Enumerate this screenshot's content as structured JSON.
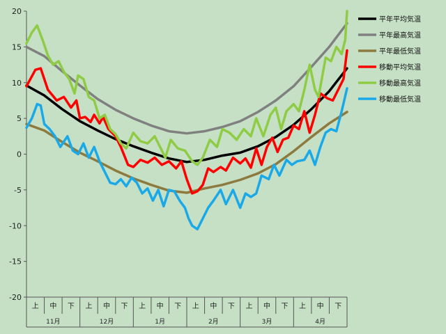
{
  "chart_data": {
    "type": "line",
    "ylim": [
      -20,
      20
    ],
    "yticks": [
      20,
      15,
      10,
      5,
      0,
      -5,
      -10,
      -15,
      -20
    ],
    "grid": false,
    "legend_position": "right",
    "background_color": "#c6e0c6",
    "x_sub_labels": [
      "上",
      "中",
      "下",
      "上",
      "中",
      "下",
      "上",
      "中",
      "下",
      "上",
      "中",
      "下",
      "上",
      "中",
      "下",
      "上",
      "中",
      "下"
    ],
    "months": [
      "11月",
      "12月",
      "1月",
      "2月",
      "3月",
      "4月"
    ],
    "x_range": [
      0,
      18
    ],
    "series": [
      {
        "name": "平年平均気温",
        "color": "#000000",
        "points": [
          [
            0,
            9.6
          ],
          [
            1,
            8.2
          ],
          [
            2,
            6.3
          ],
          [
            3,
            4.6
          ],
          [
            4,
            3.3
          ],
          [
            5,
            2.1
          ],
          [
            6,
            1.1
          ],
          [
            7,
            0.2
          ],
          [
            8,
            -0.6
          ],
          [
            9,
            -1.1
          ],
          [
            10,
            -0.8
          ],
          [
            11,
            -0.2
          ],
          [
            12,
            0.2
          ],
          [
            13,
            1.1
          ],
          [
            14,
            2.4
          ],
          [
            15,
            4.1
          ],
          [
            16,
            6.3
          ],
          [
            17,
            8.8
          ],
          [
            18,
            12.0
          ]
        ]
      },
      {
        "name": "平年最高気温",
        "color": "#808080",
        "points": [
          [
            0,
            15.0
          ],
          [
            1,
            13.7
          ],
          [
            2,
            11.6
          ],
          [
            3,
            9.6
          ],
          [
            4,
            7.7
          ],
          [
            5,
            6.2
          ],
          [
            6,
            5.0
          ],
          [
            7,
            4.0
          ],
          [
            8,
            3.2
          ],
          [
            9,
            2.9
          ],
          [
            10,
            3.2
          ],
          [
            11,
            3.8
          ],
          [
            12,
            4.6
          ],
          [
            13,
            5.9
          ],
          [
            14,
            7.5
          ],
          [
            15,
            9.5
          ],
          [
            16,
            12.2
          ],
          [
            17,
            15.0
          ],
          [
            18,
            18.3
          ]
        ]
      },
      {
        "name": "平年最低気温",
        "color": "#8c7a3e",
        "points": [
          [
            0,
            4.2
          ],
          [
            1,
            3.3
          ],
          [
            2,
            1.7
          ],
          [
            3,
            0.2
          ],
          [
            4,
            -1.0
          ],
          [
            5,
            -2.3
          ],
          [
            6,
            -3.4
          ],
          [
            7,
            -4.3
          ],
          [
            8,
            -5.1
          ],
          [
            9,
            -5.4
          ],
          [
            10,
            -4.8
          ],
          [
            11,
            -4.3
          ],
          [
            12,
            -3.6
          ],
          [
            13,
            -2.7
          ],
          [
            14,
            -1.4
          ],
          [
            15,
            0.4
          ],
          [
            16,
            2.4
          ],
          [
            17,
            4.3
          ],
          [
            18,
            5.9
          ]
        ]
      },
      {
        "name": "移動平均気温",
        "color": "#ff0000",
        "points": [
          [
            0,
            9.5
          ],
          [
            0.5,
            11.8
          ],
          [
            0.8,
            12.0
          ],
          [
            1.2,
            9.0
          ],
          [
            1.7,
            7.5
          ],
          [
            2.1,
            8.0
          ],
          [
            2.5,
            6.5
          ],
          [
            2.8,
            7.5
          ],
          [
            3.0,
            5.0
          ],
          [
            3.3,
            5.2
          ],
          [
            3.6,
            4.5
          ],
          [
            3.8,
            5.5
          ],
          [
            4.1,
            4.3
          ],
          [
            4.3,
            5.2
          ],
          [
            4.6,
            3.5
          ],
          [
            5.0,
            2.5
          ],
          [
            5.3,
            1.0
          ],
          [
            5.7,
            -1.5
          ],
          [
            6.0,
            -1.8
          ],
          [
            6.4,
            -0.8
          ],
          [
            6.8,
            -1.2
          ],
          [
            7.2,
            -0.5
          ],
          [
            7.6,
            -1.5
          ],
          [
            8.0,
            -1.0
          ],
          [
            8.4,
            -2.0
          ],
          [
            8.7,
            -1.0
          ],
          [
            9.0,
            -3.5
          ],
          [
            9.3,
            -5.5
          ],
          [
            9.6,
            -5.2
          ],
          [
            9.9,
            -4.3
          ],
          [
            10.2,
            -2.0
          ],
          [
            10.5,
            -2.5
          ],
          [
            10.9,
            -1.8
          ],
          [
            11.2,
            -2.3
          ],
          [
            11.6,
            -0.5
          ],
          [
            12.0,
            -1.3
          ],
          [
            12.3,
            -0.6
          ],
          [
            12.6,
            -1.9
          ],
          [
            12.9,
            0.8
          ],
          [
            13.2,
            -1.5
          ],
          [
            13.5,
            1.0
          ],
          [
            13.8,
            2.3
          ],
          [
            14.1,
            0.3
          ],
          [
            14.4,
            2.0
          ],
          [
            14.7,
            2.3
          ],
          [
            15.0,
            4.0
          ],
          [
            15.3,
            3.5
          ],
          [
            15.6,
            6.0
          ],
          [
            15.9,
            3.0
          ],
          [
            16.2,
            5.5
          ],
          [
            16.5,
            8.5
          ],
          [
            16.9,
            7.8
          ],
          [
            17.2,
            7.5
          ],
          [
            17.6,
            9.5
          ],
          [
            17.8,
            10.5
          ],
          [
            18.0,
            14.5
          ]
        ]
      },
      {
        "name": "移動最高気温",
        "color": "#8fcc45",
        "points": [
          [
            0,
            15.5
          ],
          [
            0.3,
            17.0
          ],
          [
            0.6,
            18.0
          ],
          [
            0.9,
            16.0
          ],
          [
            1.2,
            13.8
          ],
          [
            1.5,
            12.5
          ],
          [
            1.8,
            13.0
          ],
          [
            2.1,
            11.5
          ],
          [
            2.4,
            10.5
          ],
          [
            2.7,
            8.5
          ],
          [
            2.9,
            11.0
          ],
          [
            3.2,
            10.5
          ],
          [
            3.5,
            8.0
          ],
          [
            3.8,
            7.5
          ],
          [
            4.1,
            5.0
          ],
          [
            4.4,
            5.5
          ],
          [
            4.7,
            3.5
          ],
          [
            5.0,
            2.8
          ],
          [
            5.3,
            1.5
          ],
          [
            5.6,
            0.8
          ],
          [
            6.0,
            3.0
          ],
          [
            6.4,
            1.8
          ],
          [
            6.8,
            1.5
          ],
          [
            7.2,
            2.5
          ],
          [
            7.5,
            1.0
          ],
          [
            7.8,
            -0.5
          ],
          [
            8.1,
            2.0
          ],
          [
            8.5,
            0.8
          ],
          [
            8.9,
            0.5
          ],
          [
            9.3,
            -1.0
          ],
          [
            9.6,
            -1.5
          ],
          [
            9.9,
            -0.5
          ],
          [
            10.3,
            2.0
          ],
          [
            10.7,
            1.0
          ],
          [
            11.0,
            3.5
          ],
          [
            11.4,
            3.0
          ],
          [
            11.8,
            2.0
          ],
          [
            12.2,
            3.5
          ],
          [
            12.6,
            2.5
          ],
          [
            12.9,
            5.0
          ],
          [
            13.3,
            2.5
          ],
          [
            13.7,
            5.5
          ],
          [
            14.0,
            6.5
          ],
          [
            14.3,
            3.5
          ],
          [
            14.6,
            6.0
          ],
          [
            15.0,
            7.0
          ],
          [
            15.3,
            6.0
          ],
          [
            15.6,
            9.0
          ],
          [
            15.9,
            12.5
          ],
          [
            16.2,
            9.0
          ],
          [
            16.4,
            8.0
          ],
          [
            16.8,
            13.5
          ],
          [
            17.1,
            13.0
          ],
          [
            17.4,
            15.0
          ],
          [
            17.7,
            14.0
          ],
          [
            17.9,
            16.0
          ],
          [
            18.0,
            20.0
          ]
        ]
      },
      {
        "name": "移動最低気温",
        "color": "#19a9e8",
        "points": [
          [
            0,
            3.7
          ],
          [
            0.3,
            5.0
          ],
          [
            0.6,
            7.0
          ],
          [
            0.8,
            6.8
          ],
          [
            1.0,
            4.2
          ],
          [
            1.3,
            3.5
          ],
          [
            1.6,
            2.5
          ],
          [
            1.9,
            1.0
          ],
          [
            2.3,
            2.5
          ],
          [
            2.6,
            0.5
          ],
          [
            2.9,
            0.0
          ],
          [
            3.2,
            1.5
          ],
          [
            3.5,
            -0.5
          ],
          [
            3.8,
            1.0
          ],
          [
            4.1,
            -1.0
          ],
          [
            4.4,
            -2.5
          ],
          [
            4.7,
            -4.0
          ],
          [
            5.0,
            -4.2
          ],
          [
            5.3,
            -3.5
          ],
          [
            5.6,
            -4.5
          ],
          [
            5.9,
            -3.3
          ],
          [
            6.2,
            -4.0
          ],
          [
            6.5,
            -5.5
          ],
          [
            6.8,
            -4.8
          ],
          [
            7.1,
            -6.5
          ],
          [
            7.4,
            -5.0
          ],
          [
            7.7,
            -7.3
          ],
          [
            8.0,
            -5.0
          ],
          [
            8.3,
            -5.2
          ],
          [
            8.6,
            -6.5
          ],
          [
            8.9,
            -7.5
          ],
          [
            9.1,
            -9.0
          ],
          [
            9.3,
            -10.0
          ],
          [
            9.6,
            -10.5
          ],
          [
            9.9,
            -9.0
          ],
          [
            10.2,
            -7.5
          ],
          [
            10.5,
            -6.5
          ],
          [
            10.9,
            -5.0
          ],
          [
            11.2,
            -7.0
          ],
          [
            11.6,
            -5.0
          ],
          [
            12.0,
            -7.5
          ],
          [
            12.3,
            -5.5
          ],
          [
            12.6,
            -6.0
          ],
          [
            12.9,
            -5.5
          ],
          [
            13.2,
            -3.0
          ],
          [
            13.6,
            -3.5
          ],
          [
            13.9,
            -1.5
          ],
          [
            14.2,
            -3.0
          ],
          [
            14.6,
            -0.8
          ],
          [
            14.9,
            -1.5
          ],
          [
            15.2,
            -1.0
          ],
          [
            15.6,
            -0.8
          ],
          [
            15.9,
            0.5
          ],
          [
            16.2,
            -1.5
          ],
          [
            16.5,
            1.0
          ],
          [
            16.8,
            3.0
          ],
          [
            17.1,
            3.5
          ],
          [
            17.4,
            3.2
          ],
          [
            17.7,
            6.0
          ],
          [
            18.0,
            9.2
          ]
        ]
      }
    ]
  }
}
